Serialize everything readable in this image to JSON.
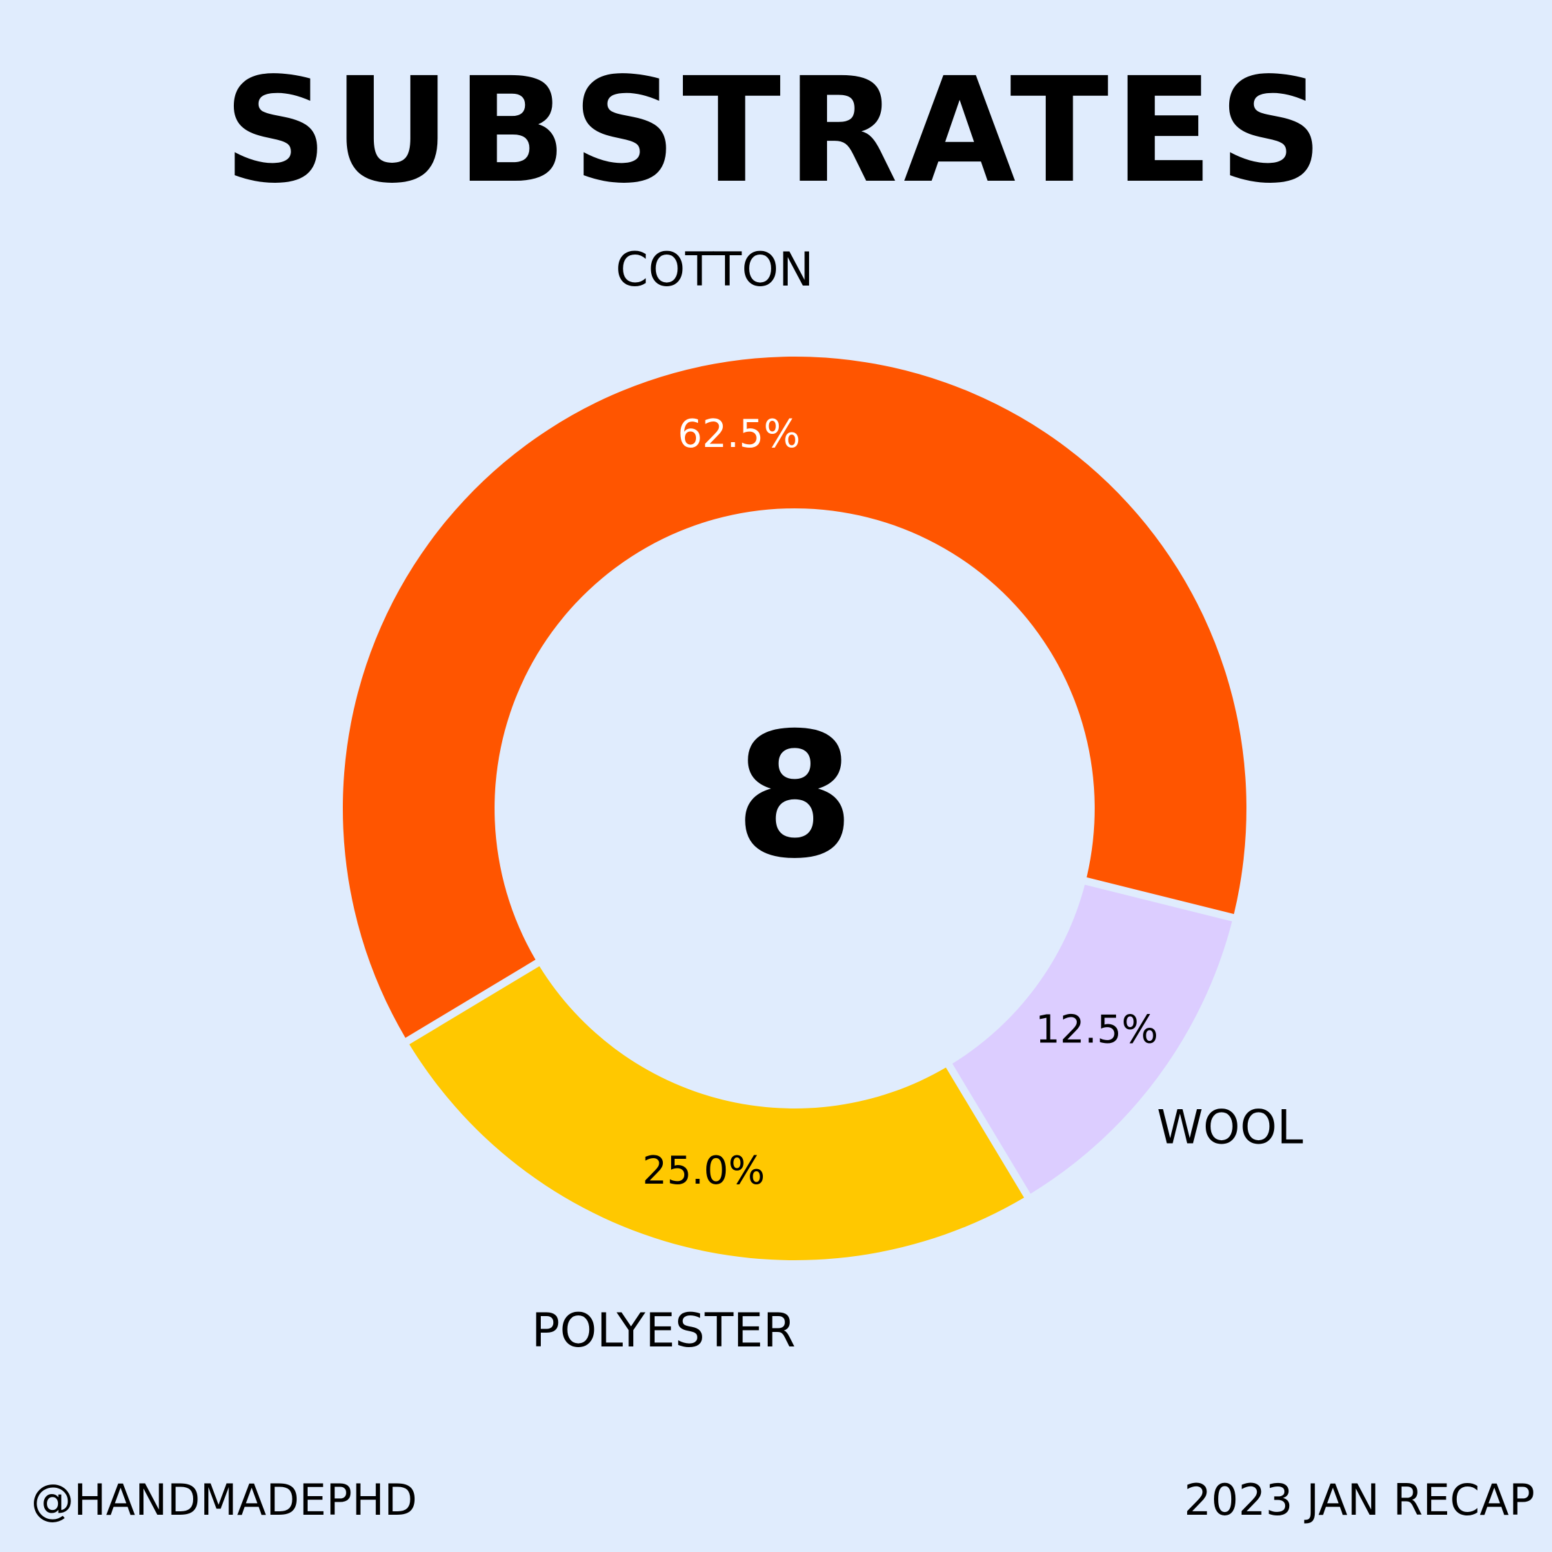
{
  "title": "SUBSTRATES",
  "chart_data": {
    "type": "pie",
    "donut": true,
    "center_label": "8",
    "start_angle_deg": -14,
    "direction": "counterclockwise",
    "categories": [
      "COTTON",
      "POLYESTER",
      "WOOL"
    ],
    "values": [
      62.5,
      25.0,
      12.5
    ],
    "data_labels": [
      "62.5%",
      "25.0%",
      "12.5%"
    ],
    "colors": [
      "#ff5500",
      "#ffc800",
      "#dccdff"
    ],
    "data_label_colors": [
      "#ffffff",
      "#000000",
      "#000000"
    ]
  },
  "footer": {
    "handle": "@HANDMADEPHD",
    "recap": "2023 JAN RECAP"
  }
}
